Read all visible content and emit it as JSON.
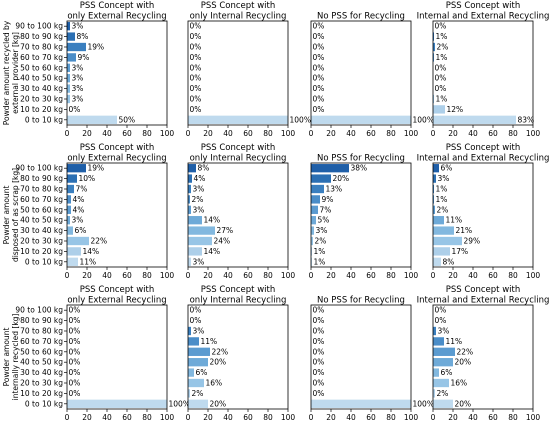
{
  "bar_colors": [
    "#1f5fa8",
    "#2b6fb3",
    "#3a7fbf",
    "#4a8dc8",
    "#5b9bd0",
    "#6eaad8",
    "#82b8df",
    "#97c5e6",
    "#adcfe9",
    "#bfdaee"
  ],
  "chart_data": [
    {
      "type": "barh",
      "title": [
        "PSS Concept with",
        "only External Recycling"
      ],
      "ylabel": [
        "Powder amount recycled by",
        "external provider [kg]"
      ],
      "categories": [
        "90 to 100 kg",
        "80 to 90 kg",
        "70 to 80 kg",
        "60 to 70 kg",
        "50 to 60 kg",
        "40 to 50 kg",
        "30 to 40 kg",
        "20 to 30 kg",
        "10 to 20 kg",
        "0 to 10 kg"
      ],
      "values": [
        3,
        8,
        19,
        9,
        3,
        3,
        3,
        3,
        0,
        50
      ],
      "value_labels": [
        "3%",
        "8%",
        "19%",
        "9%",
        "3%",
        "3%",
        "3%",
        "3%",
        "0%",
        "50%"
      ],
      "xlim": [
        0,
        100
      ],
      "xticks": [
        0,
        20,
        40,
        60,
        80,
        100
      ]
    },
    {
      "type": "barh",
      "title": [
        "PSS Concept with",
        "only Internal Recycling"
      ],
      "values": [
        0,
        0,
        0,
        0,
        0,
        0,
        0,
        0,
        0,
        100
      ],
      "value_labels": [
        "0%",
        "0%",
        "0%",
        "0%",
        "0%",
        "0%",
        "0%",
        "0%",
        "0%",
        "100%"
      ],
      "xlim": [
        0,
        100
      ],
      "xticks": [
        0,
        20,
        40,
        60,
        80,
        100
      ]
    },
    {
      "type": "barh",
      "title": [
        "No PSS for Recycling"
      ],
      "values": [
        0,
        0,
        0,
        0,
        0,
        0,
        0,
        0,
        0,
        100
      ],
      "value_labels": [
        "0%",
        "0%",
        "0%",
        "0%",
        "0%",
        "0%",
        "0%",
        "0%",
        "0%",
        "100%"
      ],
      "xlim": [
        0,
        100
      ],
      "xticks": [
        0,
        20,
        40,
        60,
        80,
        100
      ]
    },
    {
      "type": "barh",
      "title": [
        "PSS Concept with",
        "Internal and External Recycling"
      ],
      "values": [
        0,
        1,
        2,
        1,
        0,
        0,
        0,
        1,
        12,
        83
      ],
      "value_labels": [
        "0%",
        "1%",
        "2%",
        "1%",
        "0%",
        "0%",
        "0%",
        "1%",
        "12%",
        "83%"
      ],
      "xlim": [
        0,
        100
      ],
      "xticks": [
        0,
        20,
        40,
        60,
        80,
        100
      ]
    },
    {
      "type": "barh",
      "title": [
        "PSS Concept with",
        "only External Recycling"
      ],
      "ylabel": [
        "Powder amount",
        "disposed of as scrap [kg]"
      ],
      "categories": [
        "90 to 100 kg",
        "80 to 90 kg",
        "70 to 80 kg",
        "60 to 70 kg",
        "50 to 60 kg",
        "40 to 50 kg",
        "30 to 40 kg",
        "20 to 30 kg",
        "10 to 20 kg",
        "0 to 10 kg"
      ],
      "values": [
        19,
        10,
        7,
        4,
        4,
        3,
        6,
        22,
        14,
        11
      ],
      "value_labels": [
        "19%",
        "10%",
        "7%",
        "4%",
        "4%",
        "3%",
        "6%",
        "22%",
        "14%",
        "11%"
      ],
      "xlim": [
        0,
        100
      ],
      "xticks": [
        0,
        20,
        40,
        60,
        80,
        100
      ]
    },
    {
      "type": "barh",
      "title": [
        "PSS Concept with",
        "only Internal Recycling"
      ],
      "values": [
        8,
        4,
        3,
        2,
        3,
        14,
        27,
        24,
        14,
        3
      ],
      "value_labels": [
        "8%",
        "4%",
        "3%",
        "2%",
        "3%",
        "14%",
        "27%",
        "24%",
        "14%",
        "3%"
      ],
      "xlim": [
        0,
        100
      ],
      "xticks": [
        0,
        20,
        40,
        60,
        80,
        100
      ]
    },
    {
      "type": "barh",
      "title": [
        "No PSS for Recycling"
      ],
      "values": [
        38,
        20,
        13,
        9,
        7,
        5,
        3,
        2,
        1,
        1
      ],
      "value_labels": [
        "38%",
        "20%",
        "13%",
        "9%",
        "7%",
        "5%",
        "3%",
        "2%",
        "1%",
        "1%"
      ],
      "xlim": [
        0,
        100
      ],
      "xticks": [
        0,
        20,
        40,
        60,
        80,
        100
      ]
    },
    {
      "type": "barh",
      "title": [
        "PSS Concept with",
        "Internal and External Recycling"
      ],
      "values": [
        6,
        3,
        1,
        1,
        2,
        11,
        21,
        29,
        17,
        8
      ],
      "value_labels": [
        "6%",
        "3%",
        "1%",
        "1%",
        "2%",
        "11%",
        "21%",
        "29%",
        "17%",
        "8%"
      ],
      "xlim": [
        0,
        100
      ],
      "xticks": [
        0,
        20,
        40,
        60,
        80,
        100
      ]
    },
    {
      "type": "barh",
      "title": [
        "PSS Concept with",
        "only External Recycling"
      ],
      "ylabel": [
        "Powder amount",
        "internally recycled [kg]"
      ],
      "categories": [
        "90 to 100 kg",
        "80 to 90 kg",
        "70 to 80 kg",
        "60 to 70 kg",
        "50 to 60 kg",
        "40 to 50 kg",
        "30 to 40 kg",
        "20 to 30 kg",
        "10 to 20 kg",
        "0 to 10 kg"
      ],
      "values": [
        0,
        0,
        0,
        0,
        0,
        0,
        0,
        0,
        0,
        100
      ],
      "value_labels": [
        "0%",
        "0%",
        "0%",
        "0%",
        "0%",
        "0%",
        "0%",
        "0%",
        "0%",
        "100%"
      ],
      "xlim": [
        0,
        100
      ],
      "xticks": [
        0,
        20,
        40,
        60,
        80,
        100
      ]
    },
    {
      "type": "barh",
      "title": [
        "PSS Concept with",
        "only Internal Recycling"
      ],
      "values": [
        0,
        0,
        3,
        11,
        22,
        20,
        6,
        16,
        2,
        20
      ],
      "value_labels": [
        "0%",
        "0%",
        "3%",
        "11%",
        "22%",
        "20%",
        "6%",
        "16%",
        "2%",
        "20%"
      ],
      "xlim": [
        0,
        100
      ],
      "xticks": [
        0,
        20,
        40,
        60,
        80,
        100
      ]
    },
    {
      "type": "barh",
      "title": [
        "No PSS for Recycling"
      ],
      "values": [
        0,
        0,
        0,
        0,
        0,
        0,
        0,
        0,
        0,
        100
      ],
      "value_labels": [
        "0%",
        "0%",
        "0%",
        "0%",
        "0%",
        "0%",
        "0%",
        "0%",
        "0%",
        "100%"
      ],
      "xlim": [
        0,
        100
      ],
      "xticks": [
        0,
        20,
        40,
        60,
        80,
        100
      ]
    },
    {
      "type": "barh",
      "title": [
        "PSS Concept with",
        "Internal and External Recycling"
      ],
      "values": [
        0,
        0,
        3,
        11,
        22,
        20,
        6,
        16,
        2,
        20
      ],
      "value_labels": [
        "0%",
        "0%",
        "3%",
        "11%",
        "22%",
        "20%",
        "6%",
        "16%",
        "2%",
        "20%"
      ],
      "xlim": [
        0,
        100
      ],
      "xticks": [
        0,
        20,
        40,
        60,
        80,
        100
      ]
    }
  ]
}
